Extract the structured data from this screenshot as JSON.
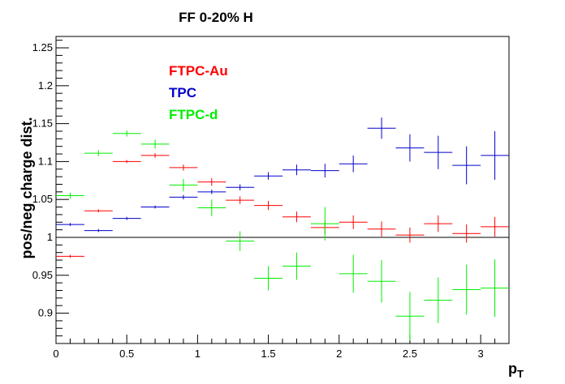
{
  "chart_data": {
    "type": "scatter",
    "title": "FF 0-20% H",
    "xlabel": "p",
    "xlabel_sub": "T",
    "ylabel": "pos/neg charge dist.",
    "xlim": [
      0,
      3.2
    ],
    "ylim": [
      0.86,
      1.265
    ],
    "x_ticks": [
      0,
      0.5,
      1,
      1.5,
      2,
      2.5,
      3
    ],
    "x_tick_labels": [
      "0",
      "0.5",
      "1",
      "1.5",
      "2",
      "2.5",
      "3"
    ],
    "y_ticks": [
      0.9,
      0.95,
      1,
      1.05,
      1.1,
      1.15,
      1.2,
      1.25
    ],
    "y_tick_labels": [
      "0.9",
      "0.95",
      "1",
      "1.05",
      "1.1",
      "1.15",
      "1.2",
      "1.25"
    ],
    "reference_line": 1.0,
    "grid": false,
    "legend_position": "top-left",
    "series": [
      {
        "name": "FTPC-Au",
        "color": "#ff0000",
        "points": [
          {
            "x": 0.1,
            "y": 0.975,
            "xerr": 0.1,
            "yerr": 0.002
          },
          {
            "x": 0.3,
            "y": 1.035,
            "xerr": 0.1,
            "yerr": 0.002
          },
          {
            "x": 0.5,
            "y": 1.1,
            "xerr": 0.1,
            "yerr": 0.002
          },
          {
            "x": 0.7,
            "y": 1.108,
            "xerr": 0.1,
            "yerr": 0.003
          },
          {
            "x": 0.9,
            "y": 1.092,
            "xerr": 0.1,
            "yerr": 0.004
          },
          {
            "x": 1.1,
            "y": 1.073,
            "xerr": 0.1,
            "yerr": 0.005
          },
          {
            "x": 1.3,
            "y": 1.049,
            "xerr": 0.1,
            "yerr": 0.005
          },
          {
            "x": 1.5,
            "y": 1.042,
            "xerr": 0.1,
            "yerr": 0.006
          },
          {
            "x": 1.7,
            "y": 1.027,
            "xerr": 0.1,
            "yerr": 0.007
          },
          {
            "x": 1.9,
            "y": 1.013,
            "xerr": 0.1,
            "yerr": 0.008
          },
          {
            "x": 2.1,
            "y": 1.02,
            "xerr": 0.1,
            "yerr": 0.009
          },
          {
            "x": 2.3,
            "y": 1.011,
            "xerr": 0.1,
            "yerr": 0.01
          },
          {
            "x": 2.5,
            "y": 1.003,
            "xerr": 0.1,
            "yerr": 0.01
          },
          {
            "x": 2.7,
            "y": 1.018,
            "xerr": 0.1,
            "yerr": 0.011
          },
          {
            "x": 2.9,
            "y": 1.005,
            "xerr": 0.1,
            "yerr": 0.012
          },
          {
            "x": 3.1,
            "y": 1.014,
            "xerr": 0.1,
            "yerr": 0.013
          }
        ]
      },
      {
        "name": "TPC",
        "color": "#0000cc",
        "points": [
          {
            "x": 0.1,
            "y": 1.017,
            "xerr": 0.1,
            "yerr": 0.002
          },
          {
            "x": 0.3,
            "y": 1.009,
            "xerr": 0.1,
            "yerr": 0.002
          },
          {
            "x": 0.5,
            "y": 1.025,
            "xerr": 0.1,
            "yerr": 0.002
          },
          {
            "x": 0.7,
            "y": 1.04,
            "xerr": 0.1,
            "yerr": 0.002
          },
          {
            "x": 0.9,
            "y": 1.053,
            "xerr": 0.1,
            "yerr": 0.003
          },
          {
            "x": 1.1,
            "y": 1.06,
            "xerr": 0.1,
            "yerr": 0.003
          },
          {
            "x": 1.3,
            "y": 1.066,
            "xerr": 0.1,
            "yerr": 0.004
          },
          {
            "x": 1.5,
            "y": 1.081,
            "xerr": 0.1,
            "yerr": 0.005
          },
          {
            "x": 1.7,
            "y": 1.089,
            "xerr": 0.1,
            "yerr": 0.007
          },
          {
            "x": 1.9,
            "y": 1.088,
            "xerr": 0.1,
            "yerr": 0.009
          },
          {
            "x": 2.1,
            "y": 1.097,
            "xerr": 0.1,
            "yerr": 0.011
          },
          {
            "x": 2.3,
            "y": 1.144,
            "xerr": 0.1,
            "yerr": 0.014
          },
          {
            "x": 2.5,
            "y": 1.118,
            "xerr": 0.1,
            "yerr": 0.018
          },
          {
            "x": 2.7,
            "y": 1.112,
            "xerr": 0.1,
            "yerr": 0.022
          },
          {
            "x": 2.9,
            "y": 1.095,
            "xerr": 0.1,
            "yerr": 0.025
          },
          {
            "x": 3.1,
            "y": 1.108,
            "xerr": 0.1,
            "yerr": 0.032
          }
        ]
      },
      {
        "name": "FTPC-d",
        "color": "#00ee00",
        "points": [
          {
            "x": 0.1,
            "y": 1.055,
            "xerr": 0.1,
            "yerr": 0.004
          },
          {
            "x": 0.3,
            "y": 1.111,
            "xerr": 0.1,
            "yerr": 0.004
          },
          {
            "x": 0.5,
            "y": 1.137,
            "xerr": 0.1,
            "yerr": 0.004
          },
          {
            "x": 0.7,
            "y": 1.123,
            "xerr": 0.1,
            "yerr": 0.006
          },
          {
            "x": 0.9,
            "y": 1.069,
            "xerr": 0.1,
            "yerr": 0.008
          },
          {
            "x": 1.1,
            "y": 1.039,
            "xerr": 0.1,
            "yerr": 0.011
          },
          {
            "x": 1.3,
            "y": 0.995,
            "xerr": 0.1,
            "yerr": 0.013
          },
          {
            "x": 1.5,
            "y": 0.946,
            "xerr": 0.1,
            "yerr": 0.016
          },
          {
            "x": 1.7,
            "y": 0.962,
            "xerr": 0.1,
            "yerr": 0.018
          },
          {
            "x": 1.9,
            "y": 1.018,
            "xerr": 0.1,
            "yerr": 0.022
          },
          {
            "x": 2.1,
            "y": 0.952,
            "xerr": 0.1,
            "yerr": 0.025
          },
          {
            "x": 2.3,
            "y": 0.942,
            "xerr": 0.1,
            "yerr": 0.028
          },
          {
            "x": 2.5,
            "y": 0.896,
            "xerr": 0.1,
            "yerr": 0.032
          },
          {
            "x": 2.7,
            "y": 0.917,
            "xerr": 0.1,
            "yerr": 0.03
          },
          {
            "x": 2.9,
            "y": 0.931,
            "xerr": 0.1,
            "yerr": 0.033
          },
          {
            "x": 3.1,
            "y": 0.933,
            "xerr": 0.1,
            "yerr": 0.038
          }
        ]
      }
    ]
  }
}
